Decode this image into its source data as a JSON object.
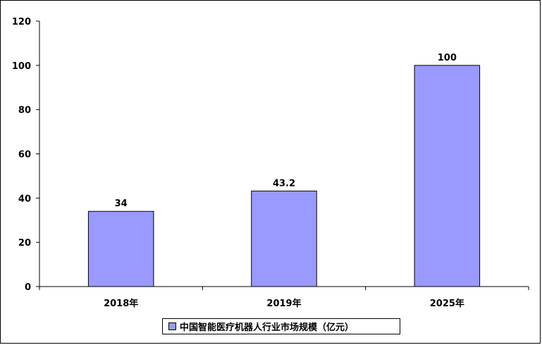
{
  "chart_data": {
    "type": "bar",
    "categories": [
      "2018年",
      "2019年",
      "2025年"
    ],
    "series": [
      {
        "name": "中国智能医疗机器人行业市场规模（亿元）",
        "values": [
          34,
          43.2,
          100
        ],
        "value_labels": [
          "34",
          "43.2",
          "100"
        ]
      }
    ],
    "ylim": [
      0,
      120
    ],
    "yticks": [
      0,
      20,
      40,
      60,
      80,
      100,
      120
    ],
    "ytick_labels": [
      "0",
      "20",
      "40",
      "60",
      "80",
      "100",
      "120"
    ],
    "grid": false,
    "legend_position": "bottom-center",
    "bar_color": "#9999ff",
    "edge_color": "#000000"
  }
}
